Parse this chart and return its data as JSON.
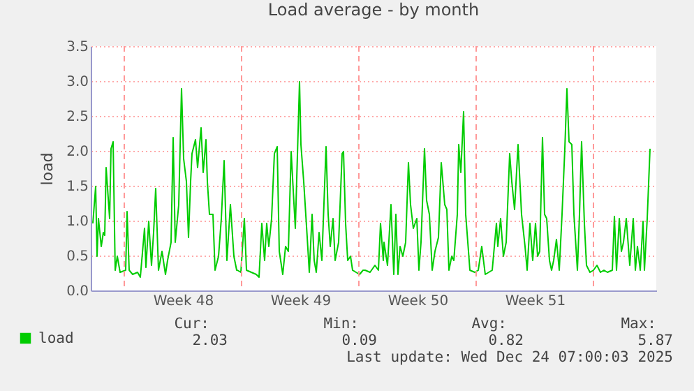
{
  "chart_data": {
    "type": "line",
    "title": "Load average - by month",
    "ylabel": "load",
    "xlim": [
      "2025-11-22T00:00",
      "2025-12-25T18:00"
    ],
    "xticks": [
      {
        "value": "2025-11-27T12:00",
        "label": "Week 48"
      },
      {
        "value": "2025-12-04T12:00",
        "label": "Week 49"
      },
      {
        "value": "2025-12-11T12:00",
        "label": "Week 50"
      },
      {
        "value": "2025-12-18T12:00",
        "label": "Week 51"
      }
    ],
    "ylim": [
      0,
      3.5
    ],
    "yticks": [
      {
        "value": 0,
        "label": "0.0"
      },
      {
        "value": 0.5,
        "label": "0.5"
      },
      {
        "value": 1,
        "label": "1.0"
      },
      {
        "value": 1.5,
        "label": "1.5"
      },
      {
        "value": 2,
        "label": "2.0"
      },
      {
        "value": 2.5,
        "label": "2.5"
      },
      {
        "value": 3,
        "label": "3.0"
      },
      {
        "value": 3.5,
        "label": "3.5"
      }
    ],
    "grid": "y",
    "legend": "bottom",
    "marker": "none",
    "line_style": "solid",
    "ref_lines": [
      {
        "axis": "x",
        "value": "2025-11-24T00:00",
        "color": "#ff9999",
        "line_style": "dashed"
      },
      {
        "axis": "x",
        "value": "2025-12-01T00:00",
        "color": "#ff9999",
        "line_style": "dashed"
      },
      {
        "axis": "x",
        "value": "2025-12-08T00:00",
        "color": "#ff9999",
        "line_style": "dashed"
      },
      {
        "axis": "x",
        "value": "2025-12-15T00:00",
        "color": "#ff9999",
        "line_style": "dashed"
      },
      {
        "axis": "x",
        "value": "2025-12-22T00:00",
        "color": "#ff9999",
        "line_style": "dashed"
      }
    ],
    "annotations": [
      "Cur:",
      "Min:",
      "Avg:",
      "Max:",
      "2.03",
      "0.09",
      "0.82",
      "5.87",
      "Last update: Wed Dec 24 07:00:03 2025"
    ],
    "series": [
      {
        "name": "load",
        "color": "#00cc00",
        "x": [
          "2025-11-22T03:00",
          "2025-11-22T07:00",
          "2025-11-22T09:00",
          "2025-11-22T11:00",
          "2025-11-22T15:00",
          "2025-11-22T18:00",
          "2025-11-22T20:00",
          "2025-11-22T22:00",
          "2025-11-23T03:00",
          "2025-11-23T05:00",
          "2025-11-23T08:00",
          "2025-11-23T11:00",
          "2025-11-23T14:00",
          "2025-11-23T18:00",
          "2025-11-24T02:00",
          "2025-11-24T04:00",
          "2025-11-24T07:00",
          "2025-11-24T12:00",
          "2025-11-24T19:00",
          "2025-11-24T23:00",
          "2025-11-25T05:00",
          "2025-11-25T07:00",
          "2025-11-25T11:00",
          "2025-11-25T15:00",
          "2025-11-25T18:00",
          "2025-11-25T21:00",
          "2025-11-26T01:00",
          "2025-11-26T06:00",
          "2025-11-26T11:00",
          "2025-11-26T14:00",
          "2025-11-26T19:00",
          "2025-11-26T22:00",
          "2025-11-27T01:00",
          "2025-11-27T06:00",
          "2025-11-27T10:00",
          "2025-11-27T13:00",
          "2025-11-27T17:00",
          "2025-11-27T20:00",
          "2025-11-27T23:00",
          "2025-11-28T01:00",
          "2025-11-28T06:00",
          "2025-11-28T09:00",
          "2025-11-28T14:00",
          "2025-11-28T17:00",
          "2025-11-28T21:00",
          "2025-11-28T23:00",
          "2025-11-29T02:00",
          "2025-11-29T07:00",
          "2025-11-29T10:00",
          "2025-11-29T15:00",
          "2025-11-29T19:00",
          "2025-11-29T23:00",
          "2025-11-30T03:00",
          "2025-11-30T08:00",
          "2025-11-30T13:00",
          "2025-11-30T17:00",
          "2025-11-30T18:00",
          "2025-11-30T23:00",
          "2025-12-01T04:00",
          "2025-12-01T07:00",
          "2025-12-01T14:00",
          "2025-12-01T21:00",
          "2025-12-02T01:00",
          "2025-12-02T05:00",
          "2025-12-02T09:00",
          "2025-12-02T12:00",
          "2025-12-02T15:00",
          "2025-12-02T19:00",
          "2025-12-02T23:00",
          "2025-12-03T03:00",
          "2025-12-03T06:00",
          "2025-12-03T11:00",
          "2025-12-03T15:00",
          "2025-12-03T19:00",
          "2025-12-03T23:00",
          "2025-12-04T02:00",
          "2025-12-04T05:00",
          "2025-12-04T11:00",
          "2025-12-04T13:00",
          "2025-12-04T17:00",
          "2025-12-04T22:00",
          "2025-12-05T01:00",
          "2025-12-05T05:00",
          "2025-12-05T08:00",
          "2025-12-05T11:00",
          "2025-12-05T15:00",
          "2025-12-05T19:00",
          "2025-12-06T01:00",
          "2025-12-06T04:00",
          "2025-12-06T07:00",
          "2025-12-06T11:00",
          "2025-12-06T14:00",
          "2025-12-06T19:00",
          "2025-12-07T00:00",
          "2025-12-07T02:00",
          "2025-12-07T05:00",
          "2025-12-07T08:00",
          "2025-12-07T12:00",
          "2025-12-07T15:00",
          "2025-12-07T20:00",
          "2025-12-08T01:00",
          "2025-12-08T06:00",
          "2025-12-08T09:00",
          "2025-12-08T16:00",
          "2025-12-08T23:00",
          "2025-12-09T04:00",
          "2025-12-09T07:00",
          "2025-12-09T11:00",
          "2025-12-09T12:00",
          "2025-12-09T17:00",
          "2025-12-09T22:00",
          "2025-12-10T02:00",
          "2025-12-10T05:00",
          "2025-12-10T08:00",
          "2025-12-10T11:00",
          "2025-12-10T15:00",
          "2025-12-10T19:00",
          "2025-12-10T23:00",
          "2025-12-11T02:00",
          "2025-12-11T06:00",
          "2025-12-11T11:00",
          "2025-12-11T14:00",
          "2025-12-11T17:00",
          "2025-12-11T22:00",
          "2025-12-12T01:00",
          "2025-12-12T05:00",
          "2025-12-12T09:00",
          "2025-12-12T13:00",
          "2025-12-12T18:00",
          "2025-12-12T22:00",
          "2025-12-13T03:00",
          "2025-12-13T06:00",
          "2025-12-13T09:00",
          "2025-12-13T13:00",
          "2025-12-13T16:00",
          "2025-12-13T21:00",
          "2025-12-13T23:00",
          "2025-12-14T02:00",
          "2025-12-14T06:00",
          "2025-12-14T09:00",
          "2025-12-14T13:00",
          "2025-12-14T15:00",
          "2025-12-14T22:00",
          "2025-12-15T03:00",
          "2025-12-15T08:00",
          "2025-12-15T13:00",
          "2025-12-15T18:00",
          "2025-12-15T23:00",
          "2025-12-16T05:00",
          "2025-12-16T07:00",
          "2025-12-16T11:00",
          "2025-12-16T15:00",
          "2025-12-16T19:00",
          "2025-12-17T00:00",
          "2025-12-17T03:00",
          "2025-12-17T07:00",
          "2025-12-17T12:00",
          "2025-12-17T17:00",
          "2025-12-17T22:00",
          "2025-12-18T01:00",
          "2025-12-18T05:00",
          "2025-12-18T09:00",
          "2025-12-18T13:00",
          "2025-12-18T16:00",
          "2025-12-18T19:00",
          "2025-12-18T23:00",
          "2025-12-19T02:00",
          "2025-12-19T05:00",
          "2025-12-19T09:00",
          "2025-12-19T12:00",
          "2025-12-19T15:00",
          "2025-12-19T19:00",
          "2025-12-19T23:00",
          "2025-12-20T03:00",
          "2025-12-20T07:00",
          "2025-12-20T10:00",
          "2025-12-20T13:00",
          "2025-12-20T17:00",
          "2025-12-20T20:00",
          "2025-12-21T01:00",
          "2025-12-21T04:00",
          "2025-12-21T07:00",
          "2025-12-21T11:00",
          "2025-12-21T14:00",
          "2025-12-21T19:00",
          "2025-12-22T00:00",
          "2025-12-22T05:00",
          "2025-12-22T10:00",
          "2025-12-22T15:00",
          "2025-12-22T20:00",
          "2025-12-23T03:00",
          "2025-12-23T06:00",
          "2025-12-23T09:00",
          "2025-12-23T13:00",
          "2025-12-23T16:00",
          "2025-12-23T19:00",
          "2025-12-23T23:00",
          "2025-12-24T04:00",
          "2025-12-24T09:00",
          "2025-12-24T12:00",
          "2025-12-24T15:00",
          "2025-12-24T19:00",
          "2025-12-24T23:00",
          "2025-12-25T01:00",
          "2025-12-25T05:00",
          "2025-12-25T09:00"
        ],
        "values": [
          0.96,
          1.49,
          0.49,
          1.03,
          0.63,
          0.83,
          0.79,
          1.76,
          1.03,
          2.03,
          2.13,
          0.29,
          0.49,
          0.26,
          0.29,
          1.13,
          0.29,
          0.23,
          0.26,
          0.19,
          0.89,
          0.33,
          0.99,
          0.36,
          0.83,
          1.46,
          0.29,
          0.56,
          0.23,
          0.43,
          0.69,
          2.19,
          0.69,
          1.23,
          2.89,
          1.89,
          1.56,
          0.76,
          1.56,
          1.96,
          2.16,
          1.76,
          2.33,
          1.69,
          2.16,
          1.56,
          1.09,
          1.09,
          0.29,
          0.49,
          1.03,
          1.86,
          0.43,
          1.23,
          0.49,
          0.29,
          0.29,
          0.26,
          1.03,
          0.29,
          0.26,
          0.23,
          0.19,
          0.96,
          0.43,
          0.96,
          0.63,
          1.03,
          1.96,
          2.06,
          0.56,
          0.23,
          0.63,
          0.56,
          1.99,
          1.43,
          0.89,
          2.99,
          2.09,
          1.56,
          0.76,
          0.26,
          1.09,
          0.43,
          0.26,
          0.83,
          0.43,
          2.06,
          1.09,
          0.63,
          1.03,
          0.43,
          0.69,
          1.96,
          1.99,
          0.96,
          0.43,
          0.49,
          0.29,
          0.26,
          0.23,
          0.29,
          0.29,
          0.26,
          0.36,
          0.29,
          0.96,
          0.43,
          0.69,
          0.36,
          1.23,
          0.23,
          1.09,
          0.23,
          0.63,
          0.49,
          0.69,
          1.83,
          1.23,
          0.89,
          1.03,
          0.29,
          0.69,
          2.03,
          1.29,
          1.09,
          0.29,
          0.56,
          0.76,
          1.83,
          1.23,
          1.16,
          0.29,
          0.49,
          0.43,
          1.09,
          2.09,
          1.69,
          2.56,
          1.09,
          0.56,
          0.29,
          0.26,
          0.29,
          0.63,
          0.23,
          0.26,
          0.29,
          0.96,
          0.63,
          1.03,
          0.49,
          0.69,
          1.96,
          1.56,
          1.16,
          2.09,
          1.09,
          0.63,
          0.29,
          0.96,
          0.43,
          0.96,
          0.49,
          0.56,
          2.19,
          1.09,
          1.03,
          0.43,
          0.29,
          0.43,
          0.73,
          0.29,
          1.09,
          2.03,
          2.89,
          2.13,
          2.09,
          1.09,
          0.29,
          1.09,
          2.13,
          0.96,
          0.36,
          0.26,
          0.29,
          0.36,
          0.26,
          0.29,
          0.26,
          0.29,
          1.06,
          0.29,
          1.03,
          0.56,
          0.69,
          1.03,
          0.36,
          1.03,
          0.29,
          0.63,
          0.29,
          0.99,
          0.29,
          1.03,
          2.03
        ]
      }
    ]
  }
}
